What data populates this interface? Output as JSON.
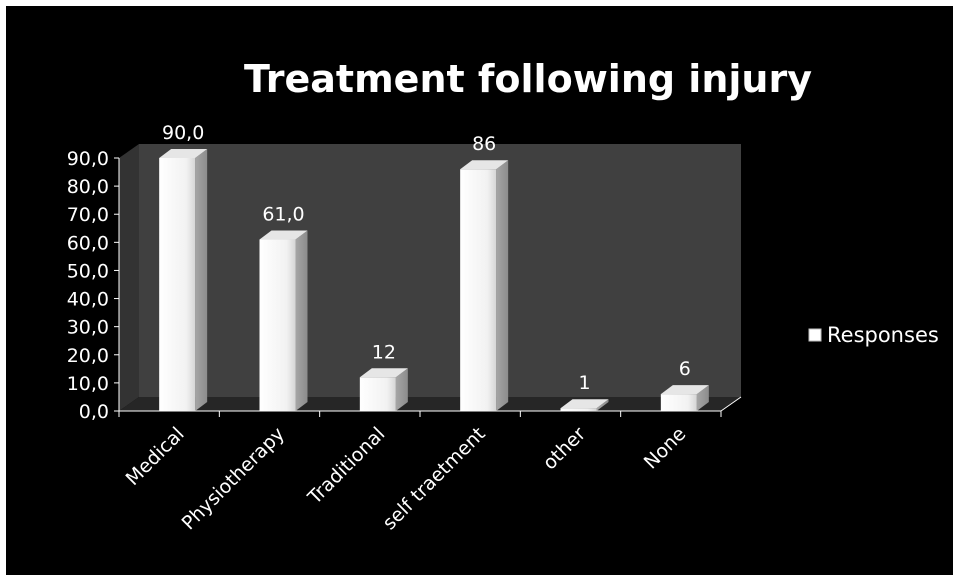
{
  "chart_data": {
    "type": "bar",
    "title": "Treatment following injury",
    "categories": [
      "Medical",
      "Physiotherapy",
      "Traditional",
      "self traetment",
      "other",
      "None"
    ],
    "series": [
      {
        "name": "Responses",
        "values": [
          90.0,
          61.0,
          12,
          86,
          1,
          6
        ],
        "color": "#ffffff"
      }
    ],
    "data_labels": [
      "90,0",
      "61,0",
      "12",
      "86",
      "1",
      "6"
    ],
    "y_ticks": [
      "0,0",
      "10,0",
      "20,0",
      "30,0",
      "40,0",
      "50,0",
      "60,0",
      "70,0",
      "80,0",
      "90,0"
    ],
    "ylim": [
      0,
      90
    ],
    "xlabel": "",
    "ylabel": "",
    "legend": "right",
    "grid": false,
    "colors": {
      "background": "#000000",
      "back_wall": "#404040",
      "floor": "#262626",
      "bar": "#ffffff",
      "text": "#ffffff"
    }
  }
}
